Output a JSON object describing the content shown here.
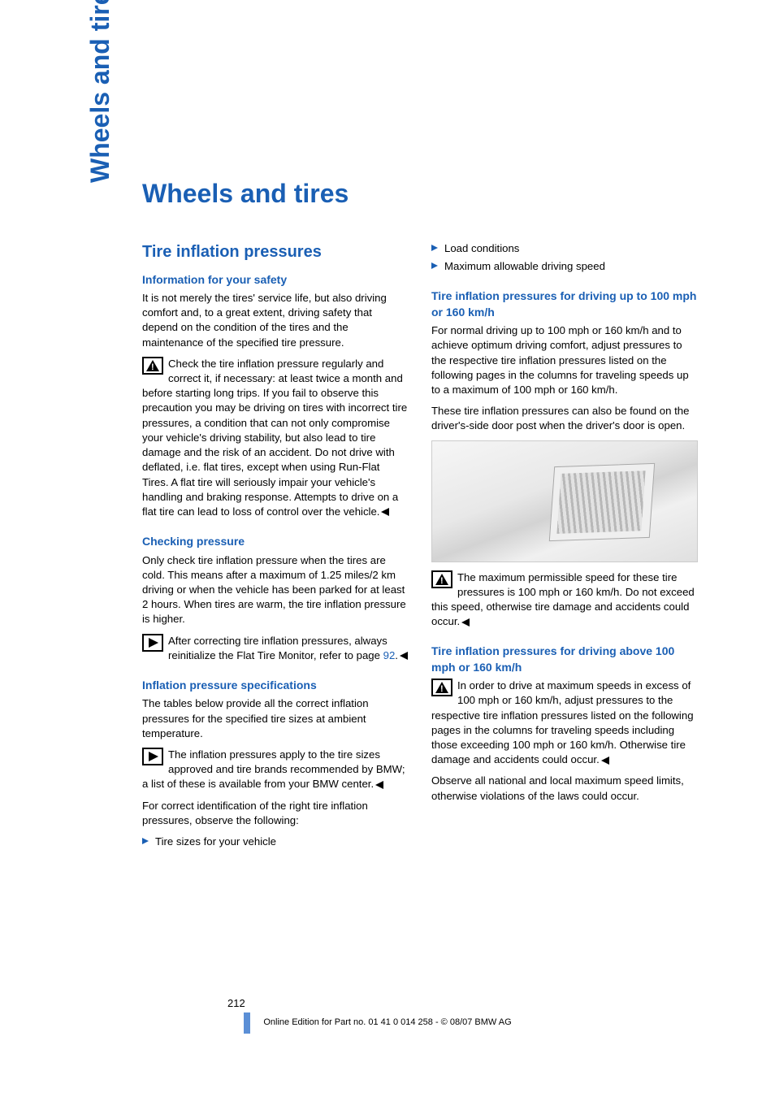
{
  "colors": {
    "accent": "#1a5fb4",
    "text": "#000000",
    "page_mark": "#5b8fd6"
  },
  "side_tab": "Wheels and tires",
  "title": "Wheels and tires",
  "left": {
    "section_title": "Tire inflation pressures",
    "s1_head": "Information for your safety",
    "s1_p1": "It is not merely the tires' service life, but also driving comfort and, to a great extent, driving safety that depend on the condition of the tires and the maintenance of the specified tire pressure.",
    "s1_warn": "Check the tire inflation pressure regularly and correct it, if necessary: at least twice a month and before starting long trips. If you fail to observe this precaution you may be driving on tires with incorrect tire pressures, a condition that can not only compromise your vehicle's driving stability, but also lead to tire damage and the risk of an accident. Do not drive with deflated, i.e. flat tires, except when using Run-Flat Tires. A flat tire will seriously impair your vehicle's handling and braking response. Attempts to drive on a flat tire can lead to loss of control over the vehicle.",
    "s2_head": "Checking pressure",
    "s2_p1": "Only check tire inflation pressure when the tires are cold. This means after a maximum of 1.25 miles/2 km driving or when the vehicle has been parked for at least 2 hours. When tires are warm, the tire inflation pressure is higher.",
    "s2_note_a": "After correcting tire inflation pressures, always reinitialize the Flat Tire Monitor, refer to page ",
    "s2_note_link": "92",
    "s2_note_b": ".",
    "s3_head": "Inflation pressure specifications",
    "s3_p1": "The tables below provide all the correct inflation pressures for the specified tire sizes at ambient temperature.",
    "s3_note": "The inflation pressures apply to the tire sizes approved and tire brands recommended by BMW; a list of these is available from your BMW center.",
    "s3_p2": "For correct identification of the right tire inflation pressures, observe the following:",
    "s3_b1": "Tire sizes for your vehicle"
  },
  "right": {
    "b1": "Load conditions",
    "b2": "Maximum allowable driving speed",
    "s4_head": "Tire inflation pressures for driving up to 100 mph or 160 km/h",
    "s4_p1": "For normal driving up to 100 mph or 160 km/h and to achieve optimum driving comfort, adjust pressures to the respective tire inflation pressures listed on the following pages in the columns for traveling speeds up to a maximum of 100 mph or 160 km/h.",
    "s4_p2": "These tire inflation pressures can also be found on the driver's-side door post when the driver's door is open.",
    "s4_warn": "The maximum permissible speed for these tire pressures is 100 mph or 160 km/h. Do not exceed this speed, otherwise tire damage and accidents could occur.",
    "s5_head": "Tire inflation pressures for driving above 100 mph or 160 km/h",
    "s5_warn": "In order to drive at maximum speeds in excess of 100 mph or 160 km/h, adjust pressures to the respective tire inflation pressures listed on the following pages in the columns for traveling speeds including those exceeding 100 mph or 160 km/h. Otherwise tire damage and accidents could occur.",
    "s5_p1": "Observe all national and local maximum speed limits, otherwise violations of the laws could occur."
  },
  "page_number": "212",
  "footer": "Online Edition for Part no. 01 41 0 014 258 - © 08/07 BMW AG"
}
